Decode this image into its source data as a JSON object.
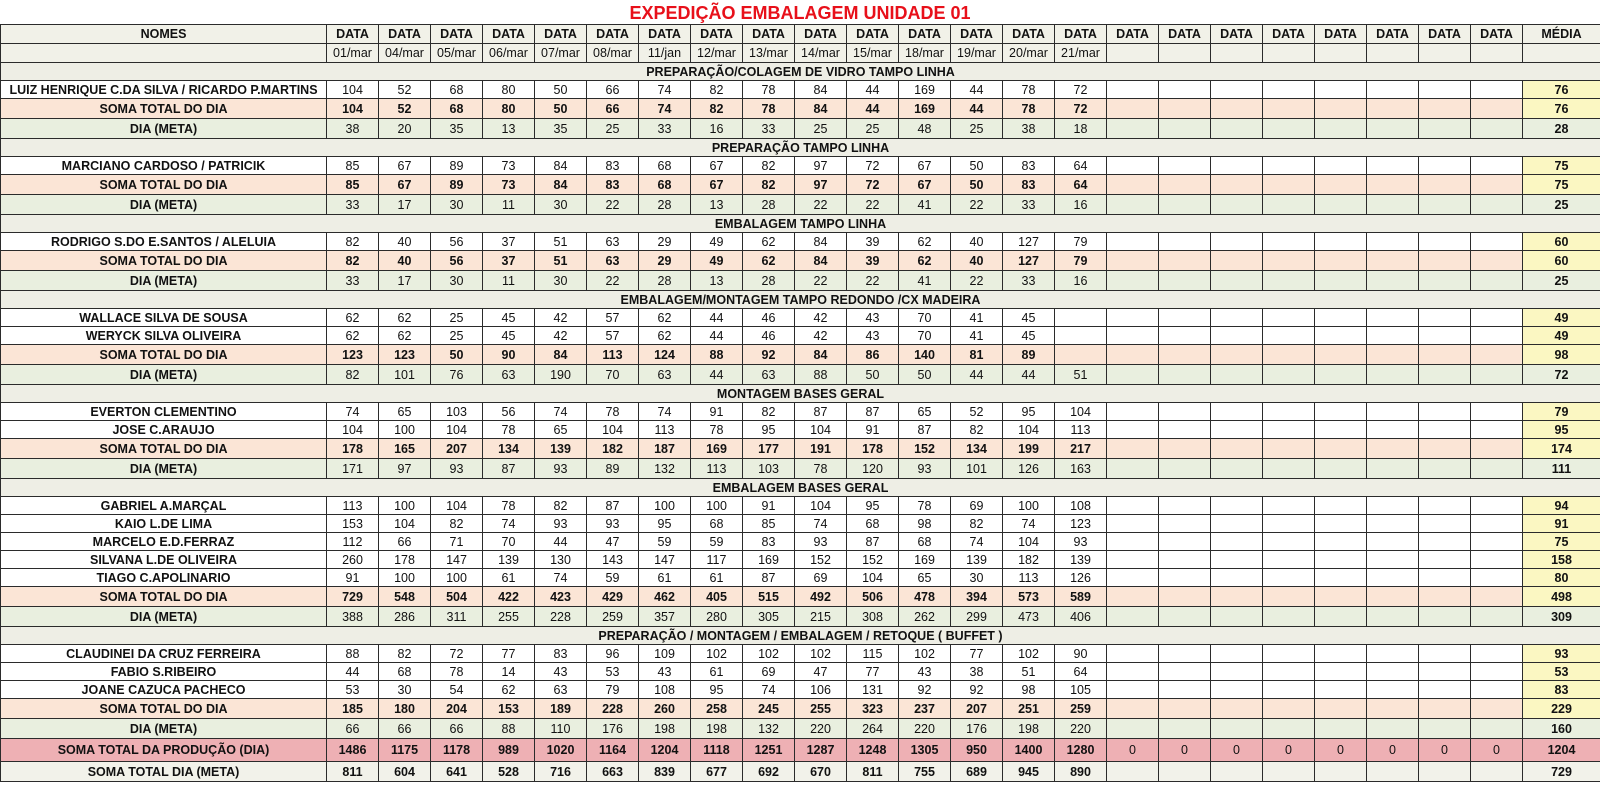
{
  "title": "EXPEDIÇÃO EMBALAGEM UNIDADE 01",
  "header": {
    "names_label": "NOMES",
    "date_label": "DATA",
    "avg_label": "MÉDIA",
    "dates": [
      "01/mar",
      "04/mar",
      "05/mar",
      "06/mar",
      "07/mar",
      "08/mar",
      "11/jan",
      "12/mar",
      "13/mar",
      "14/mar",
      "15/mar",
      "18/mar",
      "19/mar",
      "20/mar",
      "21/mar",
      "",
      "",
      "",
      "",
      "",
      "",
      "",
      ""
    ]
  },
  "sum_label": "SOMA TOTAL DO DIA",
  "meta_label": "DIA (META)",
  "sections": [
    {
      "title": "PREPARAÇÃO/COLAGEM DE VIDRO TAMPO LINHA",
      "people": [
        {
          "name": "LUIZ HENRIQUE C.DA SILVA / RICARDO P.MARTINS",
          "values": [
            "104",
            "52",
            "68",
            "80",
            "50",
            "66",
            "74",
            "82",
            "78",
            "84",
            "44",
            "169",
            "44",
            "78",
            "72"
          ],
          "avg": "76"
        }
      ],
      "sum": {
        "values": [
          "104",
          "52",
          "68",
          "80",
          "50",
          "66",
          "74",
          "82",
          "78",
          "84",
          "44",
          "169",
          "44",
          "78",
          "72"
        ],
        "avg": "76"
      },
      "meta": {
        "values": [
          "38",
          "20",
          "35",
          "13",
          "35",
          "25",
          "33",
          "16",
          "33",
          "25",
          "25",
          "48",
          "25",
          "38",
          "18"
        ],
        "avg": "28"
      }
    },
    {
      "title": "PREPARAÇÃO TAMPO LINHA",
      "people": [
        {
          "name": "MARCIANO CARDOSO / PATRICIK",
          "values": [
            "85",
            "67",
            "89",
            "73",
            "84",
            "83",
            "68",
            "67",
            "82",
            "97",
            "72",
            "67",
            "50",
            "83",
            "64"
          ],
          "avg": "75"
        }
      ],
      "sum": {
        "values": [
          "85",
          "67",
          "89",
          "73",
          "84",
          "83",
          "68",
          "67",
          "82",
          "97",
          "72",
          "67",
          "50",
          "83",
          "64"
        ],
        "avg": "75"
      },
      "meta": {
        "values": [
          "33",
          "17",
          "30",
          "11",
          "30",
          "22",
          "28",
          "13",
          "28",
          "22",
          "22",
          "41",
          "22",
          "33",
          "16"
        ],
        "avg": "25"
      }
    },
    {
      "title": "EMBALAGEM TAMPO LINHA",
      "people": [
        {
          "name": "RODRIGO S.DO E.SANTOS / ALELUIA",
          "values": [
            "82",
            "40",
            "56",
            "37",
            "51",
            "63",
            "29",
            "49",
            "62",
            "84",
            "39",
            "62",
            "40",
            "127",
            "79"
          ],
          "avg": "60"
        }
      ],
      "sum": {
        "values": [
          "82",
          "40",
          "56",
          "37",
          "51",
          "63",
          "29",
          "49",
          "62",
          "84",
          "39",
          "62",
          "40",
          "127",
          "79"
        ],
        "avg": "60"
      },
      "meta": {
        "values": [
          "33",
          "17",
          "30",
          "11",
          "30",
          "22",
          "28",
          "13",
          "28",
          "22",
          "22",
          "41",
          "22",
          "33",
          "16"
        ],
        "avg": "25"
      }
    },
    {
      "title": "EMBALAGEM/MONTAGEM TAMPO REDONDO /CX MADEIRA",
      "people": [
        {
          "name": "WALLACE SILVA DE SOUSA",
          "values": [
            "62",
            "62",
            "25",
            "45",
            "42",
            "57",
            "62",
            "44",
            "46",
            "42",
            "43",
            "70",
            "41",
            "45",
            ""
          ],
          "avg": "49"
        },
        {
          "name": "WERYCK SILVA OLIVEIRA",
          "values": [
            "62",
            "62",
            "25",
            "45",
            "42",
            "57",
            "62",
            "44",
            "46",
            "42",
            "43",
            "70",
            "41",
            "45",
            ""
          ],
          "avg": "49"
        }
      ],
      "sum": {
        "values": [
          "123",
          "123",
          "50",
          "90",
          "84",
          "113",
          "124",
          "88",
          "92",
          "84",
          "86",
          "140",
          "81",
          "89",
          ""
        ],
        "avg": "98"
      },
      "meta": {
        "values": [
          "82",
          "101",
          "76",
          "63",
          "190",
          "70",
          "63",
          "44",
          "63",
          "88",
          "50",
          "50",
          "44",
          "44",
          "51"
        ],
        "avg": "72"
      }
    },
    {
      "title": "MONTAGEM BASES GERAL",
      "people": [
        {
          "name": "EVERTON CLEMENTINO",
          "values": [
            "74",
            "65",
            "103",
            "56",
            "74",
            "78",
            "74",
            "91",
            "82",
            "87",
            "87",
            "65",
            "52",
            "95",
            "104"
          ],
          "avg": "79"
        },
        {
          "name": "JOSE C.ARAUJO",
          "values": [
            "104",
            "100",
            "104",
            "78",
            "65",
            "104",
            "113",
            "78",
            "95",
            "104",
            "91",
            "87",
            "82",
            "104",
            "113"
          ],
          "avg": "95"
        }
      ],
      "sum": {
        "values": [
          "178",
          "165",
          "207",
          "134",
          "139",
          "182",
          "187",
          "169",
          "177",
          "191",
          "178",
          "152",
          "134",
          "199",
          "217"
        ],
        "avg": "174"
      },
      "meta": {
        "values": [
          "171",
          "97",
          "93",
          "87",
          "93",
          "89",
          "132",
          "113",
          "103",
          "78",
          "120",
          "93",
          "101",
          "126",
          "163"
        ],
        "avg": "111"
      }
    },
    {
      "title": "EMBALAGEM BASES GERAL",
      "people": [
        {
          "name": "GABRIEL A.MARÇAL",
          "values": [
            "113",
            "100",
            "104",
            "78",
            "82",
            "87",
            "100",
            "100",
            "91",
            "104",
            "95",
            "78",
            "69",
            "100",
            "108"
          ],
          "avg": "94"
        },
        {
          "name": "KAIO L.DE LIMA",
          "values": [
            "153",
            "104",
            "82",
            "74",
            "93",
            "93",
            "95",
            "68",
            "85",
            "74",
            "68",
            "98",
            "82",
            "74",
            "123"
          ],
          "avg": "91"
        },
        {
          "name": "MARCELO E.D.FERRAZ",
          "values": [
            "112",
            "66",
            "71",
            "70",
            "44",
            "47",
            "59",
            "59",
            "83",
            "93",
            "87",
            "68",
            "74",
            "104",
            "93"
          ],
          "avg": "75"
        },
        {
          "name": "SILVANA L.DE OLIVEIRA",
          "values": [
            "260",
            "178",
            "147",
            "139",
            "130",
            "143",
            "147",
            "117",
            "169",
            "152",
            "152",
            "169",
            "139",
            "182",
            "139"
          ],
          "avg": "158"
        },
        {
          "name": "TIAGO C.APOLINARIO",
          "values": [
            "91",
            "100",
            "100",
            "61",
            "74",
            "59",
            "61",
            "61",
            "87",
            "69",
            "104",
            "65",
            "30",
            "113",
            "126"
          ],
          "avg": "80"
        }
      ],
      "sum": {
        "values": [
          "729",
          "548",
          "504",
          "422",
          "423",
          "429",
          "462",
          "405",
          "515",
          "492",
          "506",
          "478",
          "394",
          "573",
          "589"
        ],
        "avg": "498"
      },
      "meta": {
        "values": [
          "388",
          "286",
          "311",
          "255",
          "228",
          "259",
          "357",
          "280",
          "305",
          "215",
          "308",
          "262",
          "299",
          "473",
          "406"
        ],
        "avg": "309"
      }
    },
    {
      "title": "PREPARAÇÃO / MONTAGEM / EMBALAGEM / RETOQUE  ( BUFFET )",
      "people": [
        {
          "name": "CLAUDINEI DA CRUZ FERREIRA",
          "values": [
            "88",
            "82",
            "72",
            "77",
            "83",
            "96",
            "109",
            "102",
            "102",
            "102",
            "115",
            "102",
            "77",
            "102",
            "90"
          ],
          "avg": "93"
        },
        {
          "name": "FABIO S.RIBEIRO",
          "values": [
            "44",
            "68",
            "78",
            "14",
            "43",
            "53",
            "43",
            "61",
            "69",
            "47",
            "77",
            "43",
            "38",
            "51",
            "64"
          ],
          "avg": "53"
        },
        {
          "name": "JOANE CAZUCA PACHECO",
          "values": [
            "53",
            "30",
            "54",
            "62",
            "63",
            "79",
            "108",
            "95",
            "74",
            "106",
            "131",
            "92",
            "92",
            "98",
            "105"
          ],
          "avg": "83"
        }
      ],
      "sum": {
        "values": [
          "185",
          "180",
          "204",
          "153",
          "189",
          "228",
          "260",
          "258",
          "245",
          "255",
          "323",
          "237",
          "207",
          "251",
          "259"
        ],
        "avg": "229"
      },
      "meta": {
        "values": [
          "66",
          "66",
          "66",
          "88",
          "110",
          "176",
          "198",
          "198",
          "132",
          "220",
          "264",
          "220",
          "176",
          "198",
          "220"
        ],
        "avg": "160"
      }
    }
  ],
  "totals": {
    "production_label": "SOMA TOTAL DA PRODUÇÃO (DIA)",
    "production_values": [
      "1486",
      "1175",
      "1178",
      "989",
      "1020",
      "1164",
      "1204",
      "1118",
      "1251",
      "1287",
      "1248",
      "1305",
      "950",
      "1400",
      "1280",
      "0",
      "0",
      "0",
      "0",
      "0",
      "0",
      "0",
      "0"
    ],
    "production_avg": "1204",
    "meta_label": "SOMA TOTAL DIA (META)",
    "meta_values": [
      "811",
      "604",
      "641",
      "528",
      "716",
      "663",
      "839",
      "677",
      "692",
      "670",
      "811",
      "755",
      "689",
      "945",
      "890"
    ],
    "meta_avg": "729"
  },
  "colors": {
    "title": "#e8101a",
    "sum_row": "#fbe5d6",
    "meta_row": "#e9efdf",
    "total_row": "#eeb0b4",
    "avg_cell": "#fbf7c2"
  }
}
